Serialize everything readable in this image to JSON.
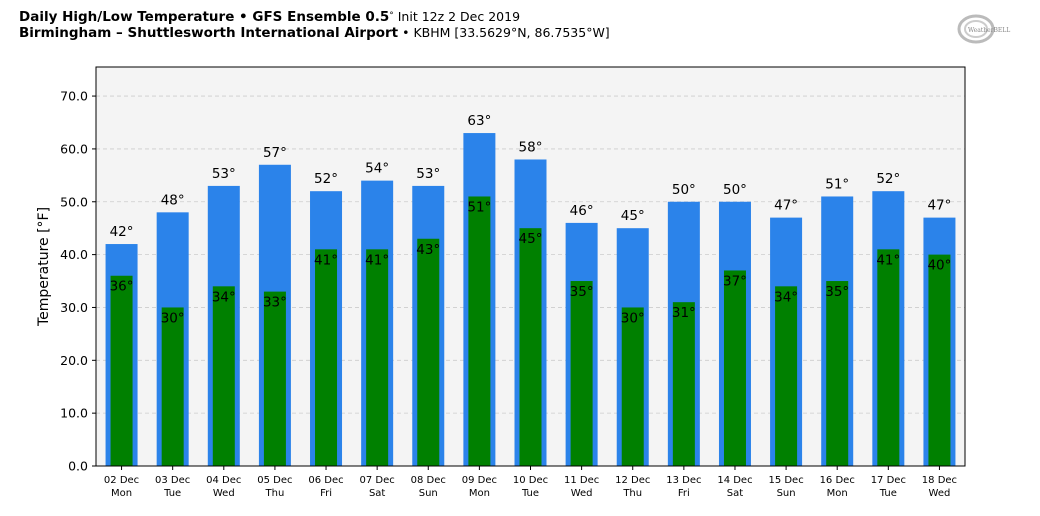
{
  "header": {
    "line1_bold": "Daily High/Low Temperature • GFS Ensemble 0.5",
    "line1_deg": "°",
    "line1_normal": " Init 12z 2 Dec 2019",
    "line2_bold": "Birmingham – Shuttlesworth International Airport",
    "line2_normal": " • KBHM [33.5629°N, 86.7535°W]"
  },
  "logo": {
    "text": "WeatherBELL"
  },
  "chart_data": {
    "type": "bar",
    "ylabel": "Temperature [°F]",
    "ylim": [
      0,
      75.5
    ],
    "yticks": [
      0,
      10,
      20,
      30,
      40,
      50,
      60,
      70
    ],
    "ytick_labels": [
      "0.0",
      "10.0",
      "20.0",
      "30.0",
      "40.0",
      "50.0",
      "60.0",
      "70.0"
    ],
    "grid": true,
    "categories": [
      "02 Dec",
      "03 Dec",
      "04 Dec",
      "05 Dec",
      "06 Dec",
      "07 Dec",
      "08 Dec",
      "09 Dec",
      "10 Dec",
      "11 Dec",
      "12 Dec",
      "13 Dec",
      "14 Dec",
      "15 Dec",
      "16 Dec",
      "17 Dec",
      "18 Dec"
    ],
    "weekdays": [
      "Mon",
      "Tue",
      "Wed",
      "Thu",
      "Fri",
      "Sat",
      "Sun",
      "Mon",
      "Tue",
      "Wed",
      "Thu",
      "Fri",
      "Sat",
      "Sun",
      "Mon",
      "Tue",
      "Wed"
    ],
    "series": [
      {
        "key": "high",
        "color": "#2b83ea",
        "values": [
          42,
          48,
          53,
          57,
          52,
          54,
          53,
          63,
          58,
          46,
          45,
          50,
          50,
          47,
          51,
          52,
          47
        ]
      },
      {
        "key": "low",
        "color": "#008000",
        "values": [
          36,
          30,
          34,
          33,
          41,
          41,
          43,
          51,
          45,
          35,
          30,
          31,
          37,
          34,
          35,
          41,
          40
        ]
      }
    ],
    "plot_background": "#f4f4f4"
  }
}
